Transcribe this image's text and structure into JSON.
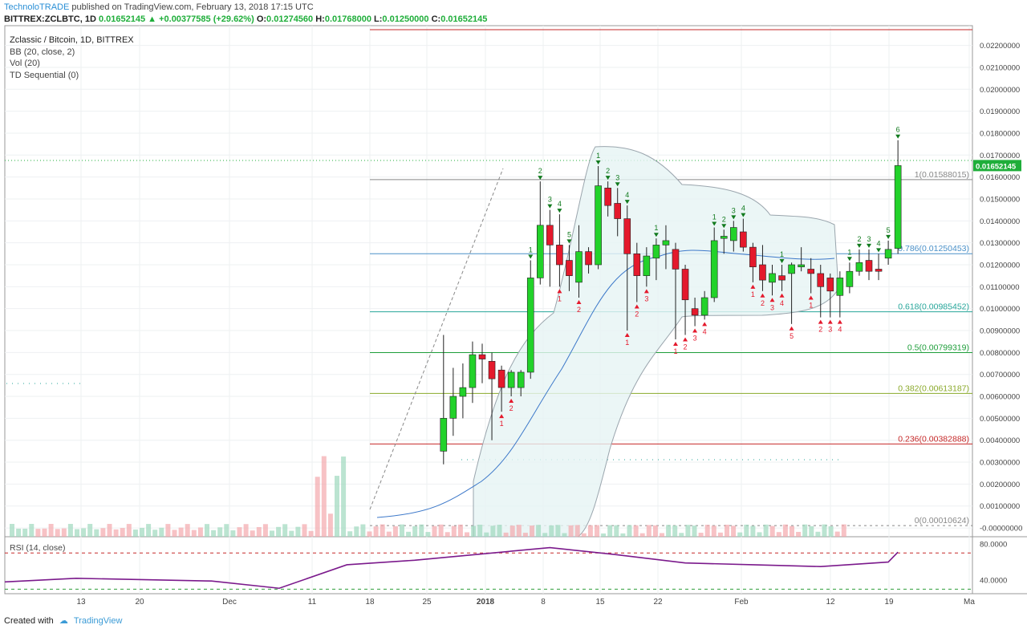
{
  "header": {
    "brand": "TechnoloTRADE",
    "published": "published on TradingView.com, February 13, 2018 17:15 UTC",
    "symbol": "BITTREX:ZCLBTC, 1D",
    "last": "0.01652145",
    "change": "+0.00377585 (+29.62%)",
    "ohlc": {
      "o": "0.01274560",
      "h": "0.01768000",
      "l": "0.01250000",
      "c": "0.01652145"
    }
  },
  "legend": {
    "title": "Zclassic / Bitcoin, 1D, BITTREX",
    "indicators": [
      "BB (20, close, 2)",
      "Vol (20)",
      "TD Sequential (0)"
    ]
  },
  "footer": {
    "created": "Created with",
    "brand": "TradingView"
  },
  "colors": {
    "up": "#22d22a",
    "down": "#e4192c",
    "bb": "#9aa5ad",
    "ma": "#3c78c9",
    "rsi": "#7b1a8c",
    "price_tag": "#1fae3a"
  },
  "chart_data": [
    {
      "type": "candlestick",
      "title": "Zclassic / Bitcoin, 1D, BITTREX",
      "x_tick_labels": [
        "13",
        "20",
        "Dec",
        "11",
        "18",
        "25",
        "2018",
        "8",
        "15",
        "22",
        "Feb",
        "12",
        "19",
        "Ma"
      ],
      "y_tick_labels": [
        "0.02200000",
        "0.02100000",
        "0.02000000",
        "0.01900000",
        "0.01800000",
        "0.01700000",
        "0.01600000",
        "0.01500000",
        "0.01400000",
        "0.01300000",
        "0.01200000",
        "0.01100000",
        "0.01000000",
        "0.00900000",
        "0.00800000",
        "0.00700000",
        "0.00600000",
        "0.00500000",
        "0.00400000",
        "0.00300000",
        "0.00200000",
        "0.00100000",
        "-0.00000000"
      ],
      "ylim": [
        -0.0004,
        0.0229
      ],
      "last_price_label": "0.01652145",
      "fib_levels": [
        {
          "label": "1(0.01588015)",
          "value": 0.01588015,
          "color": "#888888"
        },
        {
          "label": "0.786(0.01250453)",
          "value": 0.01250453,
          "color": "#4a90c8"
        },
        {
          "label": "0.618(0.00985452)",
          "value": 0.00985452,
          "color": "#26a69a"
        },
        {
          "label": "0.5(0.00799319)",
          "value": 0.00799319,
          "color": "#1e9e3a"
        },
        {
          "label": "0.382(0.00613187)",
          "value": 0.00613187,
          "color": "#8aa92a"
        },
        {
          "label": "0.236(0.00382888)",
          "value": 0.00382888,
          "color": "#c62828"
        },
        {
          "label": "0(0.00010624)",
          "value": 0.00010624,
          "color": "#888888"
        }
      ],
      "candles": [
        {
          "date": "2017-12-28",
          "o": 0.0035,
          "h": 0.0088,
          "l": 0.0029,
          "c": 0.005
        },
        {
          "date": "2017-12-29",
          "o": 0.005,
          "h": 0.0073,
          "l": 0.0042,
          "c": 0.006
        },
        {
          "date": "2017-12-30",
          "o": 0.006,
          "h": 0.0075,
          "l": 0.005,
          "c": 0.0064
        },
        {
          "date": "2017-12-31",
          "o": 0.0064,
          "h": 0.0085,
          "l": 0.0057,
          "c": 0.0079
        },
        {
          "date": "2018-01-01",
          "o": 0.0079,
          "h": 0.0084,
          "l": 0.0066,
          "c": 0.0077
        },
        {
          "date": "2018-01-02",
          "o": 0.0076,
          "h": 0.008,
          "l": 0.004,
          "c": 0.0068
        },
        {
          "date": "2018-01-03",
          "o": 0.0072,
          "h": 0.0074,
          "l": 0.0053,
          "c": 0.0064
        },
        {
          "date": "2018-01-04",
          "o": 0.0064,
          "h": 0.0072,
          "l": 0.006,
          "c": 0.0071
        },
        {
          "date": "2018-01-05",
          "o": 0.0064,
          "h": 0.0072,
          "l": 0.006,
          "c": 0.0071
        },
        {
          "date": "2018-01-06",
          "o": 0.0071,
          "h": 0.0122,
          "l": 0.0068,
          "c": 0.0114
        },
        {
          "date": "2018-01-07",
          "o": 0.0114,
          "h": 0.0158,
          "l": 0.0111,
          "c": 0.0138
        },
        {
          "date": "2018-01-08",
          "o": 0.0138,
          "h": 0.0145,
          "l": 0.011,
          "c": 0.0129
        },
        {
          "date": "2018-01-09",
          "o": 0.0129,
          "h": 0.0143,
          "l": 0.011,
          "c": 0.012
        },
        {
          "date": "2018-01-10",
          "o": 0.0122,
          "h": 0.0129,
          "l": 0.0108,
          "c": 0.0115
        },
        {
          "date": "2018-01-11",
          "o": 0.0112,
          "h": 0.0138,
          "l": 0.0105,
          "c": 0.0126
        },
        {
          "date": "2018-01-12",
          "o": 0.0126,
          "h": 0.0128,
          "l": 0.0116,
          "c": 0.012
        },
        {
          "date": "2018-01-13",
          "o": 0.012,
          "h": 0.0165,
          "l": 0.0118,
          "c": 0.0156
        },
        {
          "date": "2018-01-14",
          "o": 0.0155,
          "h": 0.0158,
          "l": 0.0142,
          "c": 0.0147
        },
        {
          "date": "2018-01-15",
          "o": 0.0148,
          "h": 0.0155,
          "l": 0.0133,
          "c": 0.0141
        },
        {
          "date": "2018-01-16",
          "o": 0.0141,
          "h": 0.0147,
          "l": 0.009,
          "c": 0.0125
        },
        {
          "date": "2018-01-17",
          "o": 0.0125,
          "h": 0.013,
          "l": 0.0103,
          "c": 0.0115
        },
        {
          "date": "2018-01-18",
          "o": 0.0115,
          "h": 0.0128,
          "l": 0.011,
          "c": 0.0124
        },
        {
          "date": "2018-01-19",
          "o": 0.0123,
          "h": 0.0132,
          "l": 0.0113,
          "c": 0.0129
        },
        {
          "date": "2018-01-20",
          "o": 0.0129,
          "h": 0.0138,
          "l": 0.0118,
          "c": 0.0131
        },
        {
          "date": "2018-01-21",
          "o": 0.0127,
          "h": 0.013,
          "l": 0.0086,
          "c": 0.0118
        },
        {
          "date": "2018-01-22",
          "o": 0.0118,
          "h": 0.012,
          "l": 0.0088,
          "c": 0.0104
        },
        {
          "date": "2018-01-23",
          "o": 0.01,
          "h": 0.0105,
          "l": 0.0092,
          "c": 0.0097
        },
        {
          "date": "2018-01-24",
          "o": 0.0097,
          "h": 0.0108,
          "l": 0.0095,
          "c": 0.0105
        },
        {
          "date": "2018-01-25",
          "o": 0.0105,
          "h": 0.0137,
          "l": 0.0103,
          "c": 0.0131
        },
        {
          "date": "2018-01-26",
          "o": 0.0132,
          "h": 0.0136,
          "l": 0.0125,
          "c": 0.0133
        },
        {
          "date": "2018-01-27",
          "o": 0.0131,
          "h": 0.014,
          "l": 0.0126,
          "c": 0.0137
        },
        {
          "date": "2018-01-28",
          "o": 0.0135,
          "h": 0.0141,
          "l": 0.0126,
          "c": 0.0128
        },
        {
          "date": "2018-01-29",
          "o": 0.0128,
          "h": 0.013,
          "l": 0.0112,
          "c": 0.0119
        },
        {
          "date": "2018-01-30",
          "o": 0.012,
          "h": 0.0129,
          "l": 0.0108,
          "c": 0.0113
        },
        {
          "date": "2018-01-31",
          "o": 0.0112,
          "h": 0.012,
          "l": 0.0106,
          "c": 0.0116
        },
        {
          "date": "2018-02-01",
          "o": 0.0115,
          "h": 0.012,
          "l": 0.0108,
          "c": 0.0113
        },
        {
          "date": "2018-02-02",
          "o": 0.0116,
          "h": 0.0121,
          "l": 0.0093,
          "c": 0.012
        },
        {
          "date": "2018-02-03",
          "o": 0.0119,
          "h": 0.0128,
          "l": 0.0117,
          "c": 0.012
        },
        {
          "date": "2018-02-04",
          "o": 0.0118,
          "h": 0.0123,
          "l": 0.0107,
          "c": 0.0116
        },
        {
          "date": "2018-02-05",
          "o": 0.0116,
          "h": 0.012,
          "l": 0.0096,
          "c": 0.011
        },
        {
          "date": "2018-02-06",
          "o": 0.0114,
          "h": 0.0116,
          "l": 0.0096,
          "c": 0.0108
        },
        {
          "date": "2018-02-07",
          "o": 0.0106,
          "h": 0.0117,
          "l": 0.0096,
          "c": 0.0114
        },
        {
          "date": "2018-02-08",
          "o": 0.011,
          "h": 0.0121,
          "l": 0.0107,
          "c": 0.0117
        },
        {
          "date": "2018-02-09",
          "o": 0.0117,
          "h": 0.0127,
          "l": 0.0115,
          "c": 0.0121
        },
        {
          "date": "2018-02-10",
          "o": 0.0122,
          "h": 0.0127,
          "l": 0.0113,
          "c": 0.0117
        },
        {
          "date": "2018-02-11",
          "o": 0.0118,
          "h": 0.0125,
          "l": 0.0113,
          "c": 0.0117
        },
        {
          "date": "2018-02-12",
          "o": 0.0123,
          "h": 0.0131,
          "l": 0.012,
          "c": 0.0127
        },
        {
          "date": "2018-02-13",
          "o": 0.0127456,
          "h": 0.01768,
          "l": 0.0125,
          "c": 0.01652145
        }
      ],
      "td_marks": [
        {
          "date": "2018-01-06",
          "label": "1",
          "dir": "up"
        },
        {
          "date": "2018-01-07",
          "label": "2",
          "dir": "up"
        },
        {
          "date": "2018-01-08",
          "label": "3",
          "dir": "up"
        },
        {
          "date": "2018-01-09",
          "label": "4",
          "dir": "up"
        },
        {
          "date": "2018-01-10",
          "label": "5",
          "dir": "up"
        },
        {
          "date": "2018-01-13",
          "label": "1",
          "dir": "up"
        },
        {
          "date": "2018-01-14",
          "label": "2",
          "dir": "up"
        },
        {
          "date": "2018-01-15",
          "label": "3",
          "dir": "up"
        },
        {
          "date": "2018-01-16",
          "label": "4",
          "dir": "up"
        },
        {
          "date": "2018-01-19",
          "label": "1",
          "dir": "up"
        },
        {
          "date": "2018-01-25",
          "label": "1",
          "dir": "up"
        },
        {
          "date": "2018-01-26",
          "label": "2",
          "dir": "up"
        },
        {
          "date": "2018-01-27",
          "label": "3",
          "dir": "up"
        },
        {
          "date": "2018-01-28",
          "label": "4",
          "dir": "up"
        },
        {
          "date": "2018-02-01",
          "label": "1",
          "dir": "up"
        },
        {
          "date": "2018-02-08",
          "label": "1",
          "dir": "up"
        },
        {
          "date": "2018-02-09",
          "label": "2",
          "dir": "up"
        },
        {
          "date": "2018-02-10",
          "label": "3",
          "dir": "up"
        },
        {
          "date": "2018-02-11",
          "label": "4",
          "dir": "up"
        },
        {
          "date": "2018-02-12",
          "label": "5",
          "dir": "up"
        },
        {
          "date": "2018-02-13",
          "label": "6",
          "dir": "up"
        },
        {
          "date": "2018-01-03",
          "label": "1",
          "dir": "down"
        },
        {
          "date": "2018-01-04",
          "label": "2",
          "dir": "down"
        },
        {
          "date": "2018-01-09",
          "label": "1",
          "dir": "down"
        },
        {
          "date": "2018-01-11",
          "label": "2",
          "dir": "down"
        },
        {
          "date": "2018-01-16",
          "label": "1",
          "dir": "down"
        },
        {
          "date": "2018-01-17",
          "label": "2",
          "dir": "down"
        },
        {
          "date": "2018-01-18",
          "label": "3",
          "dir": "down"
        },
        {
          "date": "2018-01-21",
          "label": "1",
          "dir": "down"
        },
        {
          "date": "2018-01-22",
          "label": "2",
          "dir": "down"
        },
        {
          "date": "2018-01-23",
          "label": "3",
          "dir": "down"
        },
        {
          "date": "2018-01-24",
          "label": "4",
          "dir": "down"
        },
        {
          "date": "2018-01-29",
          "label": "1",
          "dir": "down"
        },
        {
          "date": "2018-01-30",
          "label": "2",
          "dir": "down"
        },
        {
          "date": "2018-01-31",
          "label": "3",
          "dir": "down"
        },
        {
          "date": "2018-02-01",
          "label": "4",
          "dir": "down"
        },
        {
          "date": "2018-02-02",
          "label": "5",
          "dir": "down"
        },
        {
          "date": "2018-02-04",
          "label": "1",
          "dir": "down"
        },
        {
          "date": "2018-02-05",
          "label": "2",
          "dir": "down"
        },
        {
          "date": "2018-02-06",
          "label": "3",
          "dir": "down"
        },
        {
          "date": "2018-02-07",
          "label": "4",
          "dir": "down"
        }
      ]
    },
    {
      "type": "line",
      "title": "RSI (14, close)",
      "y_tick_labels": [
        "80.0000",
        "40.0000"
      ],
      "ylim": [
        25,
        88
      ],
      "bands": [
        70,
        30
      ],
      "series": [
        {
          "name": "RSI (14, close)",
          "x": [
            "2017-11-06",
            "2017-11-20",
            "2017-12-04",
            "2017-12-11",
            "2017-12-18",
            "2017-12-25",
            "2018-01-08",
            "2018-01-15",
            "2018-01-22",
            "2018-01-29",
            "2018-02-05",
            "2018-02-12",
            "2018-02-13"
          ],
          "values": [
            38,
            42,
            39,
            31,
            57,
            62,
            76,
            68,
            59,
            57,
            55,
            60,
            71
          ]
        }
      ]
    }
  ]
}
